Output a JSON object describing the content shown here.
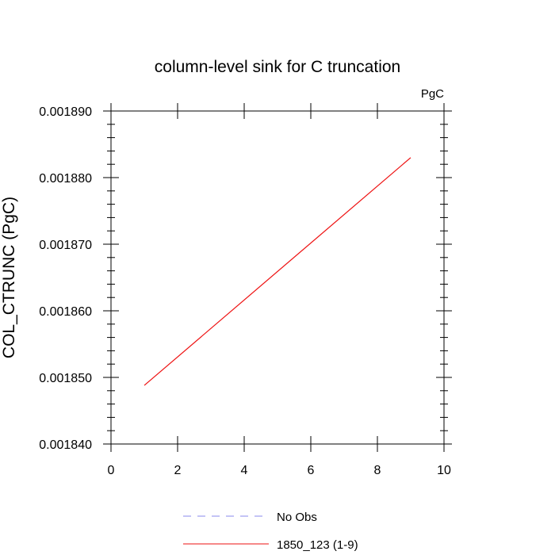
{
  "chart_data": {
    "type": "line",
    "title": "column-level sink for C truncation",
    "units": "PgC",
    "ylabel": "COL_CTRUNC  (PgC)",
    "xlabel": "",
    "xlim": [
      0,
      10
    ],
    "ylim": [
      0.00184,
      0.00189
    ],
    "xticks": [
      0,
      2,
      4,
      6,
      8,
      10
    ],
    "xtick_labels": [
      "0",
      "2",
      "4",
      "6",
      "8",
      "10"
    ],
    "yticks": [
      0.00184,
      0.00185,
      0.00186,
      0.00187,
      0.00188,
      0.00189
    ],
    "ytick_labels": [
      "0.001840",
      "0.001850",
      "0.001860",
      "0.001870",
      "0.001880",
      "0.001890"
    ],
    "grid": false,
    "legend_position": "bottom",
    "series": [
      {
        "name": "No Obs",
        "color": "#8a8aee",
        "dash": "dashed",
        "x": [],
        "y": []
      },
      {
        "name": "1850_123 (1-9)",
        "color": "#ee1111",
        "dash": "solid",
        "x": [
          1,
          9
        ],
        "y": [
          0.0018488,
          0.001883
        ]
      }
    ]
  }
}
